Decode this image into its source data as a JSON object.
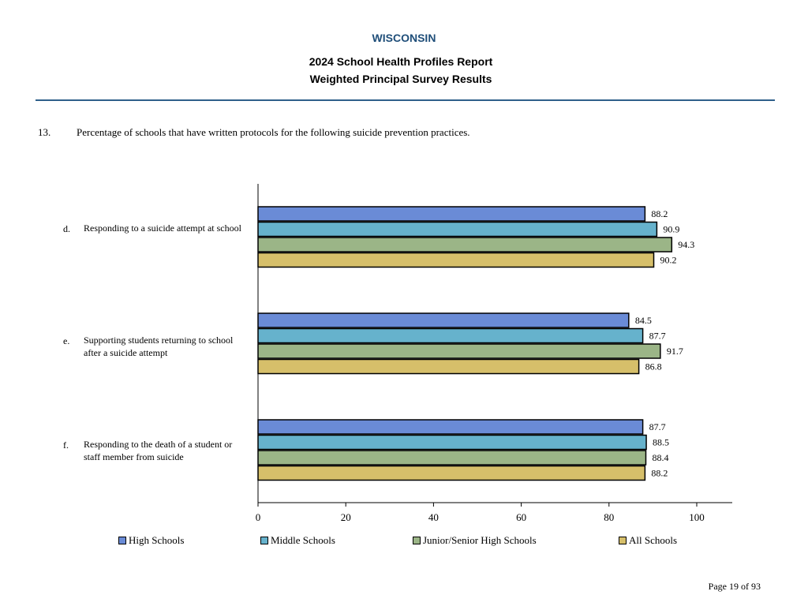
{
  "header": {
    "state": "WISCONSIN",
    "title_line1": "2024 School Health Profiles Report",
    "title_line2": "Weighted Principal Survey Results"
  },
  "question": {
    "number": "13.",
    "text": "Percentage of schools that have written protocols for the following suicide prevention practices."
  },
  "chart_data": {
    "type": "bar",
    "orientation": "horizontal",
    "categories": [
      {
        "letter": "d.",
        "label": "Responding to a suicide attempt at school"
      },
      {
        "letter": "e.",
        "label": "Supporting students returning to school after a suicide attempt"
      },
      {
        "letter": "f.",
        "label": "Responding to the death of a student or staff member from suicide"
      }
    ],
    "series": [
      {
        "name": "High Schools",
        "color": "#6a8bd6",
        "values": [
          88.2,
          84.5,
          87.7
        ]
      },
      {
        "name": "Middle Schools",
        "color": "#66b2cc",
        "values": [
          90.9,
          87.7,
          88.5
        ]
      },
      {
        "name": "Junior/Senior High Schools",
        "color": "#9bb587",
        "values": [
          94.3,
          91.7,
          88.4
        ]
      },
      {
        "name": "All Schools",
        "color": "#d6bf6a",
        "values": [
          90.2,
          86.8,
          88.2
        ]
      }
    ],
    "xlim": [
      0,
      100
    ],
    "xticks": [
      0,
      20,
      40,
      60,
      80,
      100
    ],
    "grid": false,
    "legend_position": "bottom"
  },
  "footer": {
    "page": "Page 19 of 93"
  }
}
